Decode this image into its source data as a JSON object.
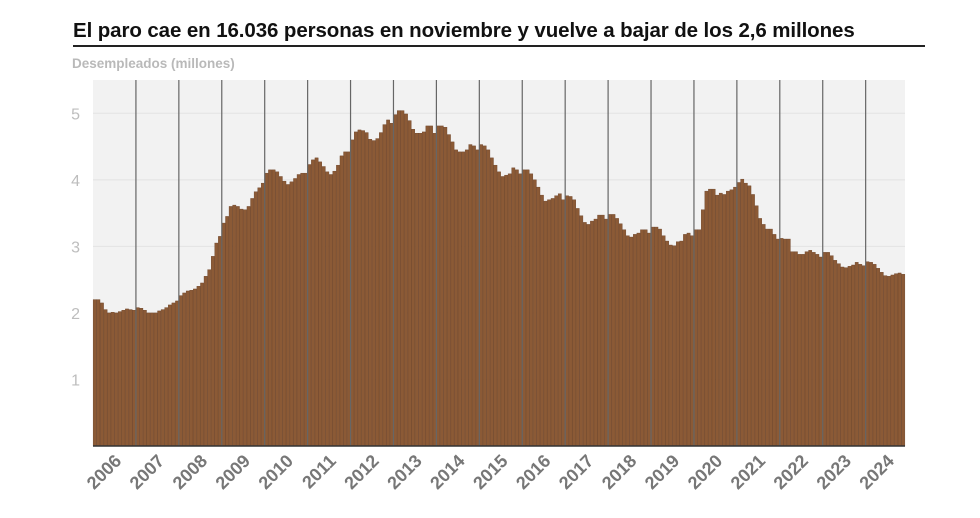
{
  "chart_data": {
    "type": "bar",
    "title": "El paro cae en 16.036 personas en noviembre y vuelve a bajar de los 2,6 millones",
    "ylabel": "Desempleados (millones)",
    "xlabel": "",
    "ylim": [
      0,
      5.5
    ],
    "yticks": [
      "1",
      "2",
      "3",
      "4",
      "5"
    ],
    "ytick_values": [
      1,
      2,
      3,
      4,
      5
    ],
    "xticks": [
      "2006",
      "2007",
      "2008",
      "2009",
      "2010",
      "2011",
      "2012",
      "2013",
      "2014",
      "2015",
      "2016",
      "2017",
      "2018",
      "2019",
      "2020",
      "2021",
      "2022",
      "2023",
      "2024"
    ],
    "x_start": "2006-01",
    "x_end": "2024-11",
    "grid": true,
    "colors": {
      "bar": "#8b5a36",
      "bar_edge": "#6b4126",
      "plot_bg": "#f2f2f2",
      "gridline": "#e3e3e3",
      "year_line": "#666666",
      "tick_text": "#777777",
      "ytick_text": "#bdbdbd"
    },
    "yearly": [
      [
        2006,
        [
          2.2,
          2.2,
          2.15,
          2.05,
          2.0,
          2.01,
          2.0,
          2.02,
          2.04,
          2.06,
          2.05,
          2.04
        ]
      ],
      [
        2007,
        [
          2.08,
          2.07,
          2.04,
          2.0,
          2.0,
          2.0,
          2.03,
          2.05,
          2.08,
          2.12,
          2.15,
          2.18
        ]
      ],
      [
        2008,
        [
          2.26,
          2.3,
          2.33,
          2.34,
          2.36,
          2.4,
          2.45,
          2.55,
          2.65,
          2.85,
          3.05,
          3.15
        ]
      ],
      [
        2009,
        [
          3.35,
          3.45,
          3.6,
          3.62,
          3.6,
          3.56,
          3.55,
          3.6,
          3.72,
          3.82,
          3.88,
          3.95
        ]
      ],
      [
        2010,
        [
          4.1,
          4.15,
          4.15,
          4.12,
          4.05,
          3.98,
          3.93,
          3.97,
          4.02,
          4.08,
          4.1,
          4.1
        ]
      ],
      [
        2011,
        [
          4.23,
          4.3,
          4.33,
          4.27,
          4.2,
          4.12,
          4.08,
          4.13,
          4.22,
          4.36,
          4.42,
          4.42
        ]
      ],
      [
        2012,
        [
          4.6,
          4.72,
          4.75,
          4.74,
          4.71,
          4.61,
          4.59,
          4.62,
          4.71,
          4.83,
          4.9,
          4.85
        ]
      ],
      [
        2013,
        [
          4.98,
          5.04,
          5.04,
          4.99,
          4.89,
          4.76,
          4.7,
          4.7,
          4.72,
          4.81,
          4.81,
          4.7
        ]
      ],
      [
        2014,
        [
          4.81,
          4.81,
          4.79,
          4.68,
          4.57,
          4.45,
          4.42,
          4.42,
          4.45,
          4.53,
          4.51,
          4.45
        ]
      ],
      [
        2015,
        [
          4.53,
          4.51,
          4.45,
          4.33,
          4.22,
          4.12,
          4.05,
          4.07,
          4.09,
          4.18,
          4.15,
          4.09
        ]
      ],
      [
        2016,
        [
          4.15,
          4.15,
          4.09,
          4.0,
          3.89,
          3.77,
          3.68,
          3.7,
          3.72,
          3.76,
          3.79,
          3.7
        ]
      ],
      [
        2017,
        [
          3.76,
          3.75,
          3.7,
          3.57,
          3.46,
          3.36,
          3.33,
          3.38,
          3.41,
          3.47,
          3.47,
          3.41
        ]
      ],
      [
        2018,
        [
          3.48,
          3.48,
          3.42,
          3.34,
          3.25,
          3.16,
          3.14,
          3.18,
          3.2,
          3.25,
          3.25,
          3.2
        ]
      ],
      [
        2019,
        [
          3.29,
          3.29,
          3.26,
          3.16,
          3.08,
          3.02,
          3.01,
          3.07,
          3.08,
          3.18,
          3.2,
          3.16
        ]
      ],
      [
        2020,
        [
          3.25,
          3.25,
          3.55,
          3.83,
          3.86,
          3.86,
          3.77,
          3.8,
          3.78,
          3.83,
          3.85,
          3.89
        ]
      ],
      [
        2021,
        [
          3.96,
          4.01,
          3.95,
          3.91,
          3.78,
          3.61,
          3.42,
          3.33,
          3.26,
          3.26,
          3.18,
          3.11
        ]
      ],
      [
        2022,
        [
          3.12,
          3.11,
          3.11,
          2.92,
          2.92,
          2.88,
          2.88,
          2.92,
          2.94,
          2.91,
          2.88,
          2.84
        ]
      ],
      [
        2023,
        [
          2.91,
          2.91,
          2.86,
          2.79,
          2.74,
          2.69,
          2.68,
          2.7,
          2.72,
          2.76,
          2.73,
          2.71
        ]
      ],
      [
        2024,
        [
          2.77,
          2.76,
          2.73,
          2.67,
          2.61,
          2.56,
          2.55,
          2.57,
          2.59,
          2.6,
          2.58
        ]
      ]
    ]
  }
}
